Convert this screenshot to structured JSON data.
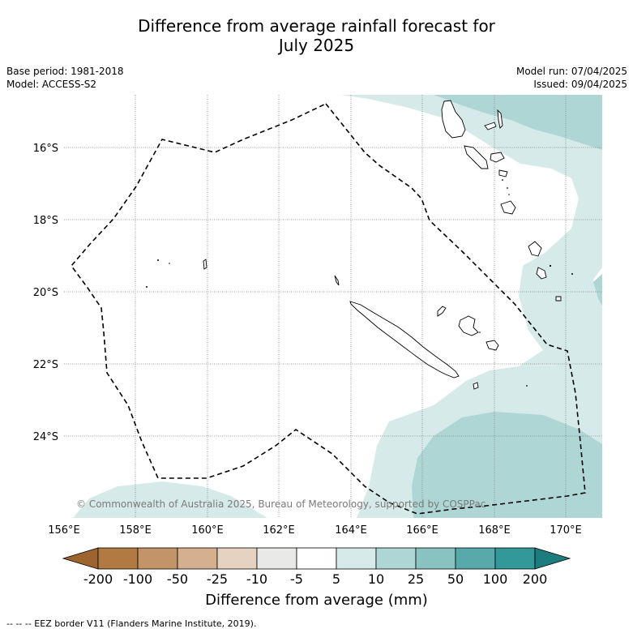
{
  "title_line1": "Difference from average rainfall forecast for",
  "title_line2": "July 2025",
  "base_period": "Base period: 1981-2018",
  "model": "Model: ACCESS-S2",
  "model_run": "Model run: 07/04/2025",
  "issued": "Issued: 09/04/2025",
  "copyright": "© Commonwealth of Australia 2025, Bureau of Meteorology, supported by COSPPac",
  "lat_labels": [
    "16°S",
    "18°S",
    "20°S",
    "22°S",
    "24°S"
  ],
  "lon_labels": [
    "156°E",
    "158°E",
    "160°E",
    "162°E",
    "164°E",
    "166°E",
    "168°E",
    "170°E"
  ],
  "colorbar": {
    "label": "Difference from average (mm)",
    "ticks": [
      "-200",
      "-100",
      "-50",
      "-25",
      "-10",
      "-5",
      "5",
      "10",
      "25",
      "50",
      "100",
      "200"
    ],
    "colors": [
      "#9d6430",
      "#b17a43",
      "#c49469",
      "#d4b08f",
      "#e6d2c0",
      "#e9e9e7",
      "#ffffff",
      "#d6ebe9",
      "#aed6d5",
      "#88c3c2",
      "#57aaa9",
      "#33989a",
      "#1c7d7f"
    ]
  },
  "footer": "--  --  -- EEZ border V11 (Flanders Marine Institute, 2019)."
}
